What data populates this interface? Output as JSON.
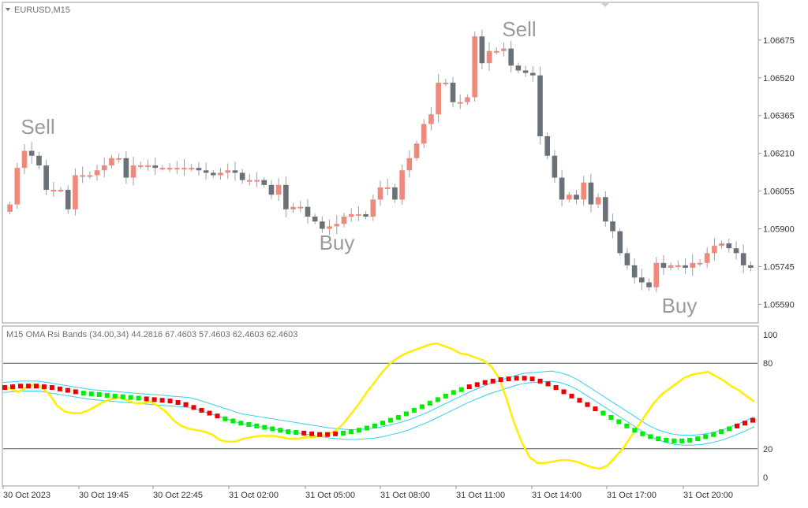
{
  "window": {
    "symbol_label": "EURUSD,M15"
  },
  "colors": {
    "bull": "#ee8a7c",
    "bear": "#6b7178",
    "band": "#2dd2ee",
    "rsi": "#ffee00",
    "dot_up": "#00ee00",
    "dot_down": "#ee0000",
    "level": "#3b5f5f"
  },
  "chart_data": [
    {
      "type": "candlestick",
      "title": "EURUSD,M15",
      "ylim": [
        1.0552,
        1.0682
      ],
      "y_ticks": [
        "1.06675",
        "1.06520",
        "1.06365",
        "1.06210",
        "1.06055",
        "1.05900",
        "1.05745",
        "1.05590"
      ],
      "x_ticks": [
        "30 Oct 2023",
        "30 Oct 19:45",
        "30 Oct 22:45",
        "31 Oct 02:00",
        "31 Oct 05:00",
        "31 Oct 08:00",
        "31 Oct 11:00",
        "31 Oct 14:00",
        "31 Oct 17:00",
        "31 Oct 20:00"
      ],
      "annotations": [
        {
          "text": "Sell",
          "near": "left top"
        },
        {
          "text": "Buy",
          "near": "first low"
        },
        {
          "text": "Sell",
          "near": "peak"
        },
        {
          "text": "Buy",
          "near": "second low"
        }
      ],
      "close": [
        1.06,
        1.0615,
        1.0622,
        1.062,
        1.0616,
        1.0606,
        1.0606,
        1.0606,
        1.0598,
        1.0612,
        1.0612,
        1.0612,
        1.0614,
        1.0616,
        1.0619,
        1.0619,
        1.0611,
        1.0616,
        1.0616,
        1.0616,
        1.0615,
        1.0615,
        1.0615,
        1.0615,
        1.0615,
        1.0615,
        1.0614,
        1.0613,
        1.0612,
        1.0613,
        1.0614,
        1.0613,
        1.061,
        1.061,
        1.061,
        1.0608,
        1.0604,
        1.0608,
        1.0598,
        1.0599,
        1.0599,
        1.0595,
        1.0593,
        1.059,
        1.0591,
        1.0592,
        1.0595,
        1.0596,
        1.0596,
        1.0595,
        1.0602,
        1.0607,
        1.0607,
        1.0602,
        1.0614,
        1.0619,
        1.0625,
        1.0633,
        1.0637,
        1.065,
        1.065,
        1.0642,
        1.0642,
        1.0644,
        1.0669,
        1.0658,
        1.0663,
        1.0663,
        1.0664,
        1.0657,
        1.0655,
        1.0654,
        1.0653,
        1.0628,
        1.062,
        1.0611,
        1.0602,
        1.0604,
        1.0602,
        1.0609,
        1.06,
        1.0603,
        1.0593,
        1.0589,
        1.058,
        1.0575,
        1.057,
        1.0568,
        1.0566,
        1.0576,
        1.0574,
        1.0575,
        1.0575,
        1.0574,
        1.0576,
        1.0576,
        1.058,
        1.0583,
        1.0584,
        1.0582,
        1.058,
        1.0575,
        1.0574
      ]
    },
    {
      "type": "line",
      "title": "M15 OMA Rsi Bands (34.00,34) 44.2816 67.4603 57.4603 62.4603 62.4603",
      "ylim": [
        -5,
        105
      ],
      "y_ticks": [
        "100",
        "80",
        "20",
        "0"
      ],
      "levels": [
        80,
        20
      ],
      "rsi": [
        64,
        62,
        60,
        63,
        65,
        63,
        58,
        50,
        46,
        45,
        45,
        47,
        50,
        53,
        55,
        56,
        54,
        52,
        52,
        53,
        50,
        46,
        40,
        36,
        34,
        33,
        32,
        30,
        26,
        25,
        25,
        27,
        28,
        29,
        29,
        29,
        28,
        27,
        27,
        28,
        28,
        29,
        30,
        33,
        38,
        45,
        52,
        60,
        67,
        74,
        80,
        84,
        87,
        89,
        91,
        93,
        94,
        92,
        90,
        87,
        86,
        84,
        82,
        78,
        70,
        55,
        38,
        24,
        14,
        10,
        10,
        11,
        12,
        12,
        11,
        9,
        7,
        6,
        8,
        14,
        20,
        28,
        36,
        44,
        52,
        58,
        62,
        66,
        70,
        72,
        73,
        74,
        71,
        68,
        64,
        61,
        57,
        53
      ],
      "band_center": [
        63,
        63.5,
        64,
        64,
        64,
        63,
        62,
        61,
        60,
        59,
        58,
        57.5,
        57,
        56.5,
        56,
        55.5,
        55,
        54.5,
        54,
        53.5,
        53,
        52.5,
        51,
        49,
        47,
        45,
        43,
        41,
        40,
        39,
        38,
        37,
        36,
        35,
        34,
        33,
        32,
        31,
        30.5,
        30,
        30,
        30.5,
        31,
        32,
        33.5,
        35,
        37,
        39.5,
        42,
        45,
        48,
        51,
        54,
        57,
        59.5,
        62,
        64,
        66,
        68,
        69.5,
        70,
        70.5,
        71,
        70,
        68,
        65,
        61,
        57,
        53,
        49,
        45,
        41,
        37,
        33,
        30,
        28,
        26.5,
        26,
        26,
        26.5,
        27.5,
        29,
        31,
        33.5,
        36,
        39
      ],
      "band_width": 7,
      "dot_series": [
        63,
        63.5,
        64,
        64,
        64,
        63.5,
        63,
        62,
        61,
        60,
        59,
        58.5,
        58,
        57.5,
        57,
        56.5,
        56,
        55.5,
        55,
        54.5,
        54,
        53.5,
        52.5,
        51,
        49,
        47,
        45,
        43,
        41,
        39.5,
        38,
        37,
        36,
        35,
        34,
        33,
        32,
        31.5,
        31,
        30.5,
        30,
        30,
        30.5,
        31,
        32,
        33,
        34.5,
        36,
        38,
        40,
        42,
        44.5,
        47,
        49.5,
        52,
        54.5,
        57,
        59.5,
        61.5,
        63.5,
        65,
        66.5,
        67.5,
        68.5,
        69,
        69.5,
        69.5,
        69,
        67.5,
        65.5,
        63,
        60,
        57,
        54,
        51,
        48,
        45,
        42,
        39,
        36,
        33,
        30.5,
        28.5,
        27,
        26,
        25.5,
        25.5,
        26,
        27,
        28.5,
        30,
        32,
        34,
        36,
        38,
        40
      ],
      "dot_colors": [
        "r",
        "r",
        "r",
        "r",
        "r",
        "r",
        "r",
        "r",
        "r",
        "r",
        "g",
        "g",
        "g",
        "g",
        "g",
        "g",
        "g",
        "g",
        "r",
        "r",
        "r",
        "r",
        "r",
        "r",
        "r",
        "r",
        "r",
        "r",
        "g",
        "g",
        "g",
        "g",
        "g",
        "g",
        "g",
        "g",
        "g",
        "g",
        "r",
        "r",
        "r",
        "r",
        "r",
        "g",
        "g",
        "g",
        "g",
        "g",
        "g",
        "g",
        "g",
        "g",
        "g",
        "g",
        "g",
        "g",
        "g",
        "g",
        "g",
        "r",
        "r",
        "r",
        "r",
        "r",
        "r",
        "r",
        "r",
        "r",
        "r",
        "r",
        "r",
        "r",
        "r",
        "r",
        "r",
        "r",
        "g",
        "g",
        "g",
        "g",
        "g",
        "g",
        "g",
        "g",
        "g",
        "g",
        "g",
        "g",
        "g",
        "g",
        "g",
        "g",
        "g",
        "r",
        "r",
        "r",
        "r"
      ]
    }
  ]
}
